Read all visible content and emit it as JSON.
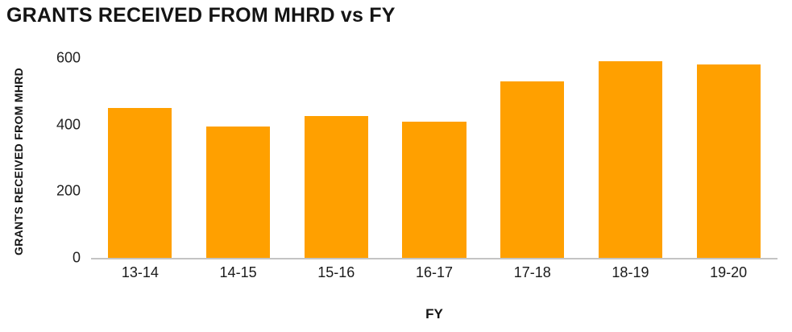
{
  "chart_data": {
    "type": "bar",
    "title": "GRANTS RECEIVED FROM MHRD vs FY",
    "xlabel": "FY",
    "ylabel": "GRANTS RECEIVED FROM MHRD",
    "categories": [
      "13-14",
      "14-15",
      "15-16",
      "16-17",
      "17-18",
      "18-19",
      "19-20"
    ],
    "values": [
      450,
      395,
      425,
      410,
      530,
      590,
      580
    ],
    "ylim": [
      0,
      600
    ],
    "yticks": [
      0,
      200,
      400,
      600
    ],
    "bar_color": "#FFA000",
    "axis_line_color": "#c4c4c4",
    "grid": false,
    "legend": "none"
  }
}
